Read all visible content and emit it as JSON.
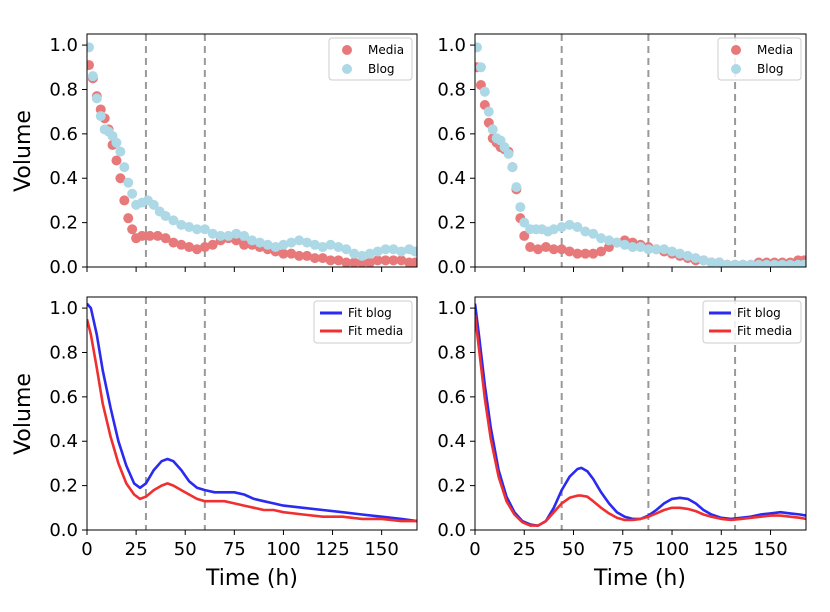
{
  "colors": {
    "media_points": "#e8797a",
    "blog_points": "#add8e6",
    "fit_blog": "#2a2af0",
    "fit_media": "#f03030",
    "vline": "#999999",
    "frame": "#000000"
  },
  "chart_data": [
    {
      "id": "top-left",
      "type": "scatter",
      "xlabel": "",
      "ylabel": "Volume",
      "xlim": [
        0,
        168
      ],
      "ylim": [
        0,
        1.05
      ],
      "xticks": [
        0,
        25,
        50,
        75,
        100,
        125,
        150
      ],
      "yticks": [
        0.0,
        0.2,
        0.4,
        0.6,
        0.8,
        1.0
      ],
      "show_x_tick_labels": false,
      "show_y_tick_labels": true,
      "vlines": [
        30,
        60
      ],
      "legend": {
        "placement": "top-right",
        "entries": [
          "Media",
          "Blog"
        ]
      },
      "series": [
        {
          "name": "Media",
          "x": [
            1,
            3,
            5,
            7,
            9,
            11,
            13,
            15,
            17,
            19,
            21,
            23,
            25,
            28,
            32,
            36,
            40,
            44,
            48,
            52,
            56,
            60,
            64,
            68,
            72,
            76,
            80,
            84,
            88,
            92,
            96,
            100,
            104,
            108,
            112,
            116,
            120,
            124,
            128,
            132,
            136,
            140,
            144,
            148,
            152,
            156,
            160,
            164,
            167
          ],
          "y": [
            0.91,
            0.85,
            0.77,
            0.71,
            0.67,
            0.62,
            0.55,
            0.48,
            0.4,
            0.3,
            0.22,
            0.17,
            0.13,
            0.14,
            0.14,
            0.14,
            0.13,
            0.11,
            0.1,
            0.09,
            0.08,
            0.09,
            0.1,
            0.12,
            0.13,
            0.12,
            0.1,
            0.1,
            0.09,
            0.08,
            0.07,
            0.06,
            0.06,
            0.05,
            0.05,
            0.04,
            0.04,
            0.03,
            0.03,
            0.02,
            0.02,
            0.02,
            0.02,
            0.03,
            0.03,
            0.03,
            0.03,
            0.02,
            0.02
          ]
        },
        {
          "name": "Blog",
          "x": [
            1,
            3,
            5,
            7,
            9,
            11,
            13,
            15,
            17,
            19,
            21,
            23,
            25,
            28,
            31,
            34,
            37,
            40,
            44,
            48,
            52,
            56,
            60,
            64,
            68,
            72,
            76,
            80,
            84,
            88,
            92,
            96,
            100,
            104,
            108,
            112,
            116,
            120,
            124,
            128,
            132,
            136,
            140,
            144,
            148,
            152,
            156,
            160,
            164,
            167
          ],
          "y": [
            0.99,
            0.86,
            0.76,
            0.68,
            0.62,
            0.61,
            0.59,
            0.56,
            0.52,
            0.45,
            0.38,
            0.33,
            0.28,
            0.29,
            0.3,
            0.28,
            0.25,
            0.23,
            0.21,
            0.19,
            0.18,
            0.17,
            0.17,
            0.15,
            0.14,
            0.14,
            0.15,
            0.14,
            0.12,
            0.11,
            0.1,
            0.09,
            0.1,
            0.11,
            0.12,
            0.11,
            0.1,
            0.09,
            0.1,
            0.09,
            0.08,
            0.06,
            0.05,
            0.06,
            0.07,
            0.08,
            0.08,
            0.07,
            0.08,
            0.07
          ]
        }
      ]
    },
    {
      "id": "top-right",
      "type": "scatter",
      "xlabel": "",
      "ylabel": "",
      "xlim": [
        0,
        168
      ],
      "ylim": [
        0,
        1.05
      ],
      "xticks": [
        0,
        25,
        50,
        75,
        100,
        125,
        150
      ],
      "yticks": [
        0.0,
        0.2,
        0.4,
        0.6,
        0.8,
        1.0
      ],
      "show_x_tick_labels": false,
      "show_y_tick_labels": true,
      "vlines": [
        44,
        88,
        132
      ],
      "legend": {
        "placement": "top-right",
        "entries": [
          "Media",
          "Blog"
        ]
      },
      "series": [
        {
          "name": "Media",
          "x": [
            1,
            3,
            5,
            7,
            9,
            11,
            13,
            15,
            17,
            19,
            21,
            23,
            25,
            28,
            32,
            36,
            40,
            44,
            48,
            52,
            56,
            60,
            64,
            68,
            72,
            76,
            80,
            84,
            88,
            92,
            96,
            100,
            104,
            108,
            112,
            116,
            120,
            124,
            128,
            132,
            136,
            140,
            144,
            148,
            152,
            156,
            160,
            164,
            167
          ],
          "y": [
            0.9,
            0.82,
            0.73,
            0.65,
            0.58,
            0.56,
            0.54,
            0.53,
            0.52,
            0.45,
            0.35,
            0.22,
            0.14,
            0.09,
            0.08,
            0.09,
            0.08,
            0.08,
            0.07,
            0.06,
            0.06,
            0.06,
            0.07,
            0.09,
            0.11,
            0.12,
            0.11,
            0.1,
            0.09,
            0.08,
            0.07,
            0.06,
            0.05,
            0.04,
            0.03,
            0.03,
            0.02,
            0.02,
            0.01,
            0.01,
            0.01,
            0.01,
            0.02,
            0.02,
            0.02,
            0.02,
            0.02,
            0.03,
            0.03
          ]
        },
        {
          "name": "Blog",
          "x": [
            1,
            3,
            5,
            7,
            9,
            11,
            13,
            15,
            17,
            19,
            21,
            23,
            25,
            28,
            31,
            34,
            37,
            40,
            44,
            48,
            52,
            56,
            60,
            64,
            68,
            72,
            76,
            80,
            84,
            88,
            92,
            96,
            100,
            104,
            108,
            112,
            116,
            120,
            124,
            128,
            132,
            136,
            140,
            144,
            148,
            152,
            156,
            160,
            164,
            167
          ],
          "y": [
            0.99,
            0.9,
            0.79,
            0.7,
            0.62,
            0.58,
            0.57,
            0.54,
            0.51,
            0.45,
            0.36,
            0.27,
            0.2,
            0.17,
            0.17,
            0.17,
            0.16,
            0.17,
            0.18,
            0.19,
            0.18,
            0.16,
            0.15,
            0.13,
            0.12,
            0.11,
            0.1,
            0.09,
            0.09,
            0.08,
            0.08,
            0.08,
            0.07,
            0.06,
            0.05,
            0.04,
            0.03,
            0.02,
            0.02,
            0.01,
            0.01,
            0.01,
            0.01,
            0.01,
            0.01,
            0.01,
            0.01,
            0.01,
            0.01,
            0.01
          ]
        }
      ]
    },
    {
      "id": "bottom-left",
      "type": "line",
      "xlabel": "Time (h)",
      "ylabel": "Volume",
      "xlim": [
        0,
        168
      ],
      "ylim": [
        0,
        1.05
      ],
      "xticks": [
        0,
        25,
        50,
        75,
        100,
        125,
        150
      ],
      "yticks": [
        0.0,
        0.2,
        0.4,
        0.6,
        0.8,
        1.0
      ],
      "show_x_tick_labels": true,
      "show_y_tick_labels": true,
      "vlines": [
        30,
        60
      ],
      "legend": {
        "placement": "top-right",
        "entries": [
          "Fit blog",
          "Fit media"
        ]
      },
      "series": [
        {
          "name": "Fit blog",
          "x": [
            0,
            2,
            5,
            8,
            12,
            16,
            20,
            24,
            27,
            30,
            34,
            38,
            41,
            44,
            48,
            52,
            56,
            60,
            65,
            70,
            75,
            80,
            85,
            90,
            95,
            100,
            110,
            120,
            130,
            140,
            150,
            160,
            168
          ],
          "y": [
            1.02,
            1.0,
            0.88,
            0.72,
            0.55,
            0.4,
            0.29,
            0.21,
            0.19,
            0.21,
            0.27,
            0.31,
            0.32,
            0.31,
            0.27,
            0.22,
            0.19,
            0.18,
            0.17,
            0.17,
            0.17,
            0.16,
            0.14,
            0.13,
            0.12,
            0.11,
            0.1,
            0.09,
            0.08,
            0.07,
            0.06,
            0.05,
            0.04
          ]
        },
        {
          "name": "Fit media",
          "x": [
            0,
            2,
            5,
            8,
            12,
            16,
            20,
            24,
            27,
            30,
            34,
            38,
            41,
            44,
            48,
            52,
            56,
            60,
            65,
            70,
            75,
            80,
            85,
            90,
            95,
            100,
            110,
            120,
            130,
            140,
            150,
            160,
            168
          ],
          "y": [
            0.95,
            0.88,
            0.73,
            0.57,
            0.42,
            0.3,
            0.21,
            0.16,
            0.14,
            0.15,
            0.18,
            0.2,
            0.21,
            0.2,
            0.18,
            0.16,
            0.14,
            0.13,
            0.13,
            0.13,
            0.12,
            0.11,
            0.1,
            0.09,
            0.09,
            0.08,
            0.07,
            0.06,
            0.06,
            0.05,
            0.05,
            0.04,
            0.04
          ]
        }
      ]
    },
    {
      "id": "bottom-right",
      "type": "line",
      "xlabel": "Time (h)",
      "ylabel": "",
      "xlim": [
        0,
        168
      ],
      "ylim": [
        0,
        1.05
      ],
      "xticks": [
        0,
        25,
        50,
        75,
        100,
        125,
        150
      ],
      "yticks": [
        0.0,
        0.2,
        0.4,
        0.6,
        0.8,
        1.0
      ],
      "show_x_tick_labels": true,
      "show_y_tick_labels": true,
      "vlines": [
        44,
        88,
        132
      ],
      "legend": {
        "placement": "top-right",
        "entries": [
          "Fit blog",
          "Fit media"
        ]
      },
      "series": [
        {
          "name": "Fit blog",
          "x": [
            0,
            2,
            5,
            8,
            12,
            16,
            20,
            24,
            28,
            32,
            36,
            40,
            44,
            48,
            52,
            54,
            57,
            60,
            64,
            68,
            72,
            76,
            80,
            84,
            88,
            92,
            96,
            100,
            104,
            108,
            112,
            116,
            120,
            125,
            130,
            135,
            140,
            145,
            150,
            155,
            160,
            165,
            168
          ],
          "y": [
            1.02,
            0.88,
            0.65,
            0.46,
            0.27,
            0.15,
            0.08,
            0.04,
            0.025,
            0.02,
            0.04,
            0.1,
            0.18,
            0.24,
            0.275,
            0.28,
            0.265,
            0.23,
            0.17,
            0.12,
            0.08,
            0.06,
            0.05,
            0.05,
            0.065,
            0.09,
            0.12,
            0.14,
            0.145,
            0.14,
            0.12,
            0.09,
            0.07,
            0.055,
            0.05,
            0.055,
            0.06,
            0.07,
            0.075,
            0.08,
            0.075,
            0.07,
            0.065
          ]
        },
        {
          "name": "Fit media",
          "x": [
            0,
            2,
            5,
            8,
            12,
            16,
            20,
            24,
            28,
            32,
            36,
            40,
            44,
            48,
            52,
            54,
            57,
            60,
            64,
            68,
            72,
            76,
            80,
            84,
            88,
            92,
            96,
            100,
            104,
            108,
            112,
            116,
            120,
            125,
            130,
            135,
            140,
            145,
            150,
            155,
            160,
            165,
            168
          ],
          "y": [
            0.97,
            0.82,
            0.59,
            0.41,
            0.24,
            0.13,
            0.07,
            0.035,
            0.02,
            0.02,
            0.04,
            0.08,
            0.12,
            0.145,
            0.155,
            0.155,
            0.15,
            0.13,
            0.1,
            0.075,
            0.055,
            0.045,
            0.045,
            0.05,
            0.06,
            0.075,
            0.09,
            0.1,
            0.1,
            0.095,
            0.085,
            0.07,
            0.06,
            0.05,
            0.045,
            0.05,
            0.055,
            0.06,
            0.065,
            0.065,
            0.06,
            0.055,
            0.05
          ]
        }
      ]
    }
  ]
}
